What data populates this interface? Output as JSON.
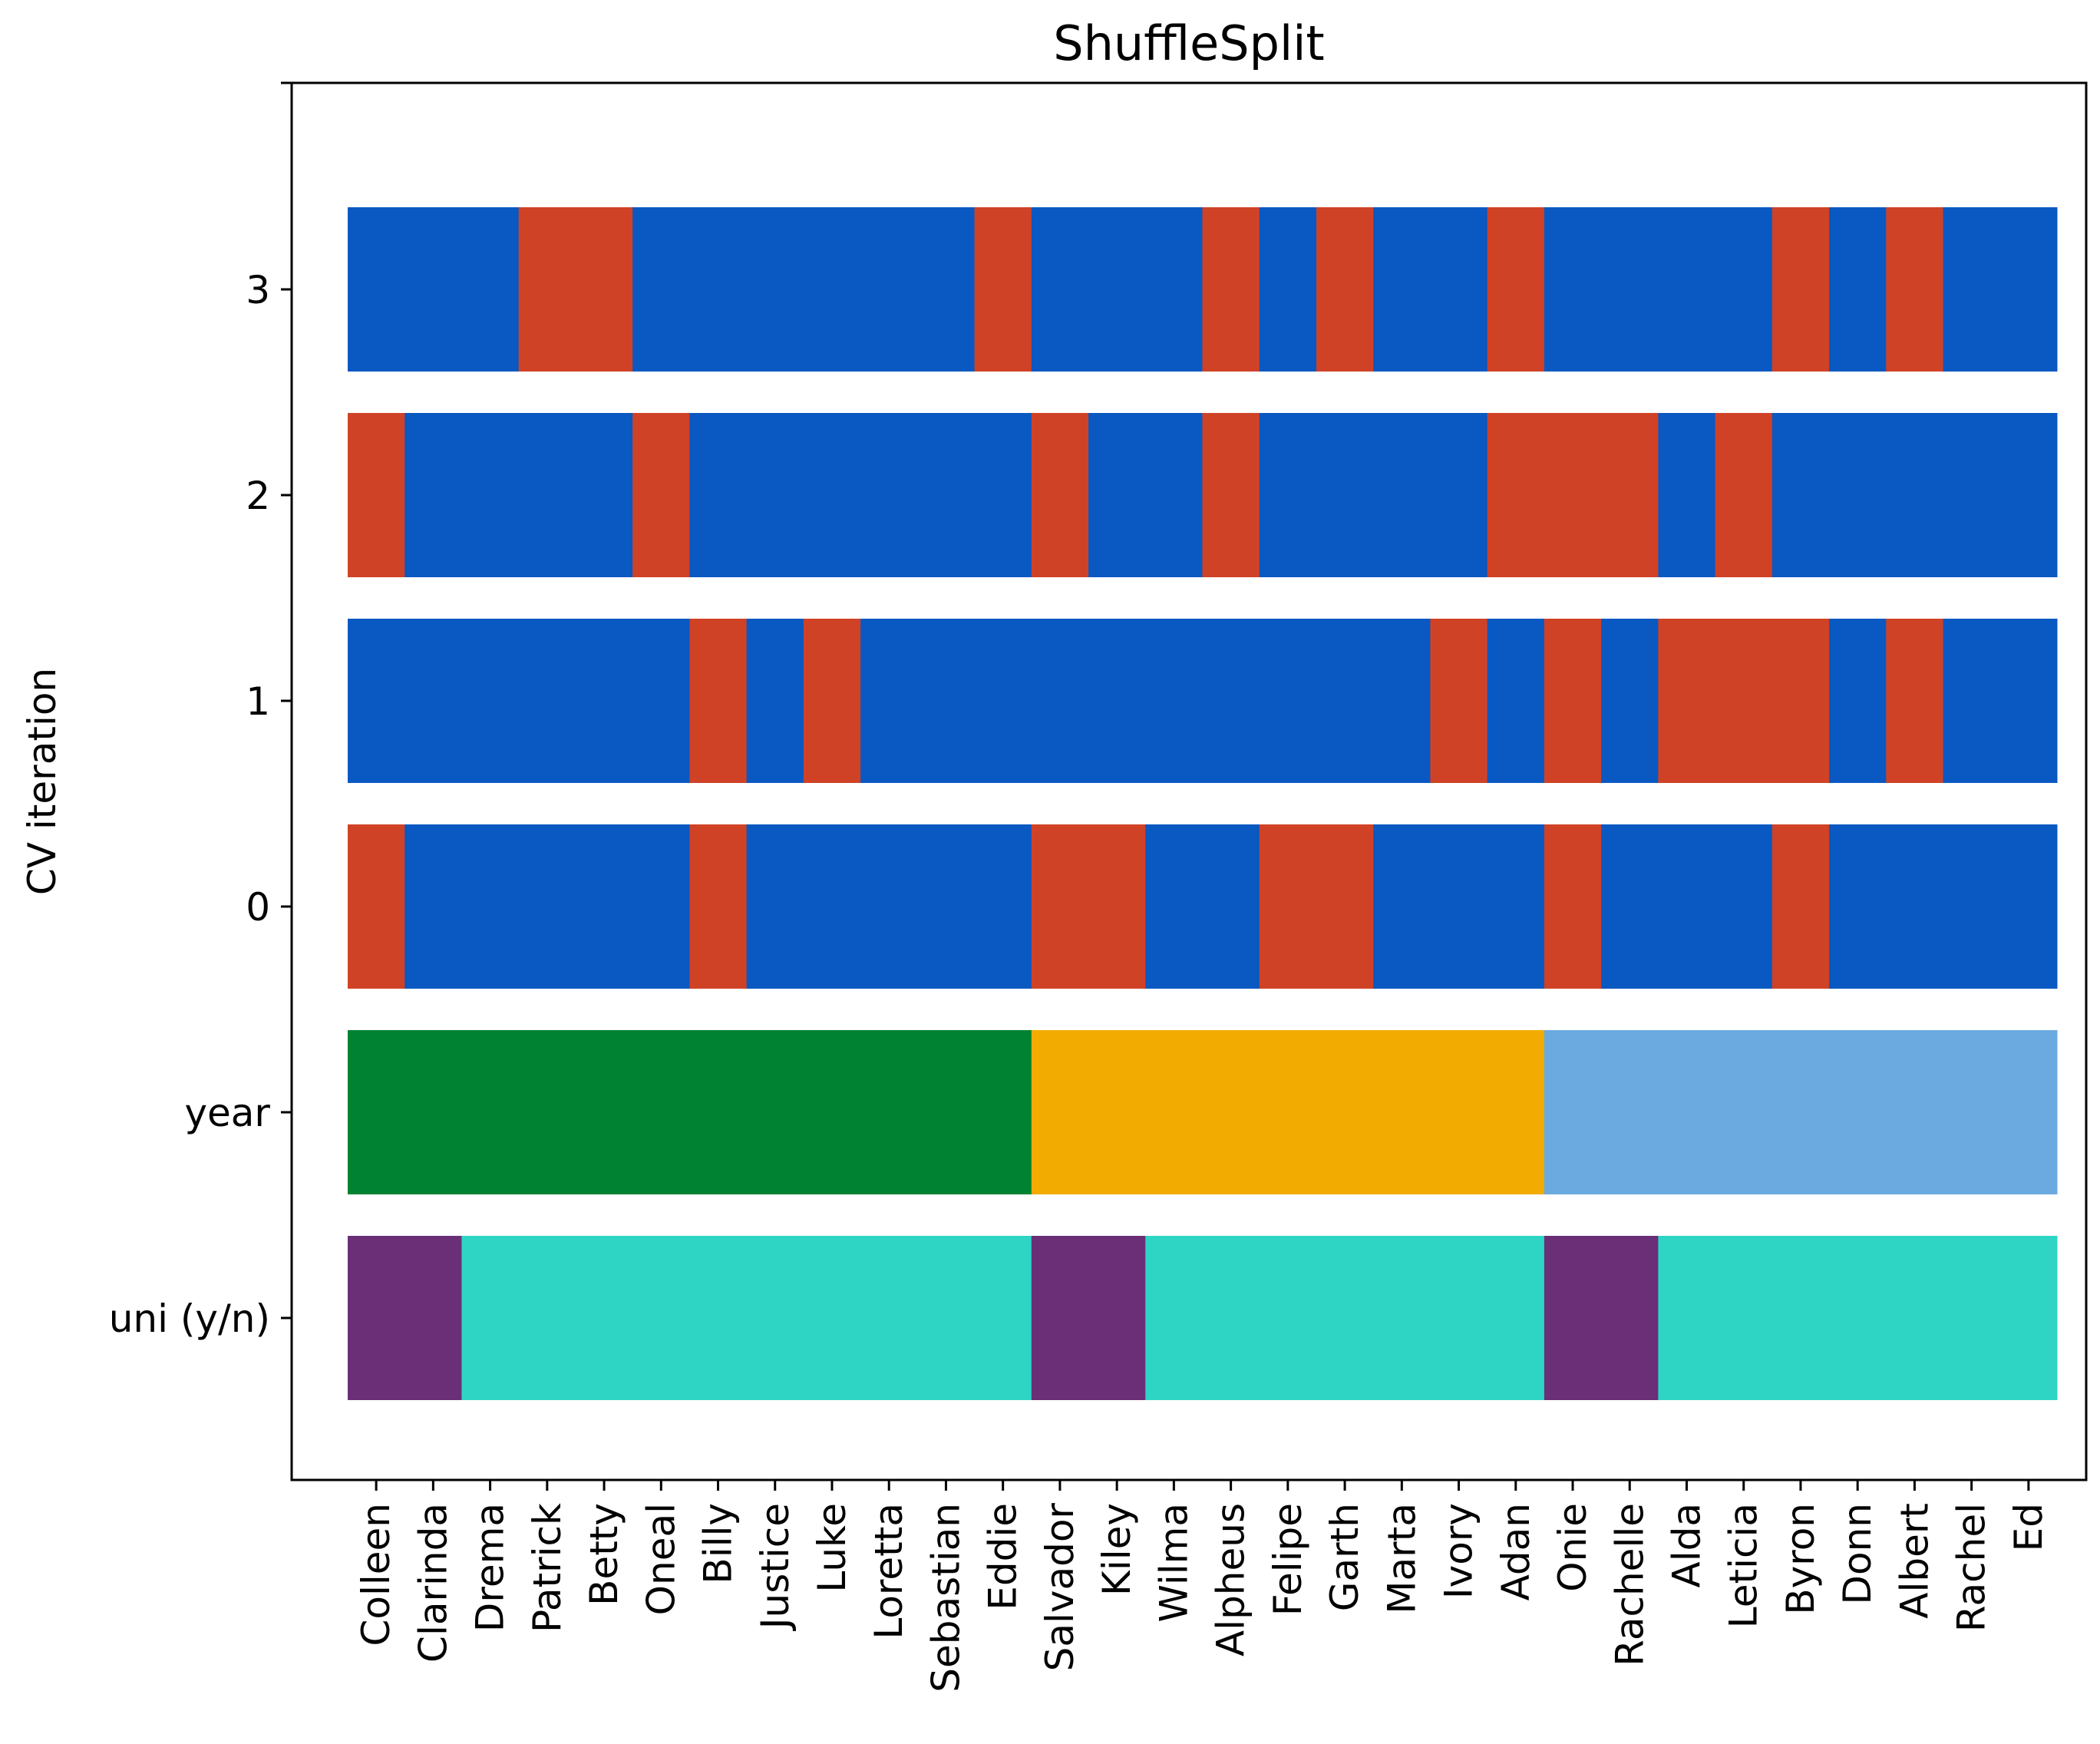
{
  "chart_data": {
    "type": "heatmap",
    "title": "ShuffleSplit",
    "xlabel": "",
    "ylabel": "CV iteration",
    "grid": false,
    "legend": "none",
    "x_tick_labels": [
      "Colleen",
      "Clarinda",
      "Drema",
      "Patrick",
      "Betty",
      "Oneal",
      "Billy",
      "Justice",
      "Luke",
      "Loretta",
      "Sebastian",
      "Eddie",
      "Salvador",
      "Kiley",
      "Wilma",
      "Alpheus",
      "Felipe",
      "Garth",
      "Marta",
      "Ivory",
      "Adan",
      "Onie",
      "Rachelle",
      "Alda",
      "Leticia",
      "Byron",
      "Donn",
      "Albert",
      "Rachel",
      "Ed"
    ],
    "rows": [
      {
        "label": "3",
        "cells": [
          "train",
          "train",
          "train",
          "test",
          "test",
          "train",
          "train",
          "train",
          "train",
          "train",
          "train",
          "test",
          "train",
          "train",
          "train",
          "test",
          "train",
          "test",
          "train",
          "train",
          "test",
          "train",
          "train",
          "train",
          "train",
          "test",
          "train",
          "test",
          "train",
          "train"
        ]
      },
      {
        "label": "2",
        "cells": [
          "test",
          "train",
          "train",
          "train",
          "train",
          "test",
          "train",
          "train",
          "train",
          "train",
          "train",
          "train",
          "test",
          "train",
          "train",
          "test",
          "train",
          "train",
          "train",
          "train",
          "test",
          "test",
          "test",
          "train",
          "test",
          "train",
          "train",
          "train",
          "train",
          "train"
        ]
      },
      {
        "label": "1",
        "cells": [
          "train",
          "train",
          "train",
          "train",
          "train",
          "train",
          "test",
          "train",
          "test",
          "train",
          "train",
          "train",
          "train",
          "train",
          "train",
          "train",
          "train",
          "train",
          "train",
          "test",
          "train",
          "test",
          "train",
          "test",
          "test",
          "test",
          "train",
          "test",
          "train",
          "train"
        ]
      },
      {
        "label": "0",
        "cells": [
          "test",
          "train",
          "train",
          "train",
          "train",
          "train",
          "test",
          "train",
          "train",
          "train",
          "train",
          "train",
          "test",
          "test",
          "train",
          "train",
          "test",
          "test",
          "train",
          "train",
          "train",
          "test",
          "train",
          "train",
          "train",
          "test",
          "train",
          "train",
          "train",
          "train"
        ]
      },
      {
        "label": "year",
        "cells": [
          "g1",
          "g1",
          "g1",
          "g1",
          "g1",
          "g1",
          "g1",
          "g1",
          "g1",
          "g1",
          "g1",
          "g1",
          "g2",
          "g2",
          "g2",
          "g2",
          "g2",
          "g2",
          "g2",
          "g2",
          "g2",
          "g3",
          "g3",
          "g3",
          "g3",
          "g3",
          "g3",
          "g3",
          "g3",
          "g3"
        ]
      },
      {
        "label": "uni (y/n)",
        "cells": [
          "y",
          "y",
          "n",
          "n",
          "n",
          "n",
          "n",
          "n",
          "n",
          "n",
          "n",
          "n",
          "y",
          "y",
          "n",
          "n",
          "n",
          "n",
          "n",
          "n",
          "n",
          "y",
          "y",
          "n",
          "n",
          "n",
          "n",
          "n",
          "n",
          "n"
        ]
      }
    ],
    "colors": {
      "train": "#0a58c2",
      "test": "#d04226",
      "g1": "#008233",
      "g2": "#f2ab00",
      "g3": "#6aaae0",
      "y": "#6a2f77",
      "n": "#2ed5c4"
    }
  }
}
